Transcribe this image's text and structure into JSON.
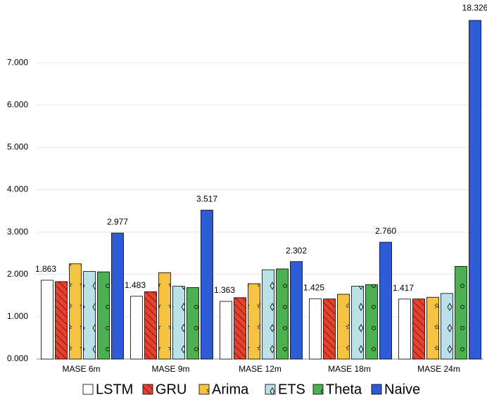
{
  "chart_data": {
    "type": "bar",
    "categories": [
      "MASE 6m",
      "MASE 9m",
      "MASE 12m",
      "MASE 18m",
      "MASE 24m"
    ],
    "series": [
      {
        "name": "LSTM",
        "color": "#ffffff",
        "values": [
          1.863,
          1.483,
          1.363,
          1.425,
          1.417
        ],
        "value_labels": [
          "1.863",
          "1.483",
          "1.363",
          "1.425",
          "1.417"
        ]
      },
      {
        "name": "GRU",
        "color": "#e8412b",
        "values": [
          1.83,
          1.59,
          1.45,
          1.42,
          1.42
        ]
      },
      {
        "name": "Arima",
        "color": "#f5c242",
        "values": [
          2.25,
          2.04,
          1.78,
          1.53,
          1.46
        ]
      },
      {
        "name": "ETS",
        "color": "#b9e1e7",
        "values": [
          2.07,
          1.72,
          2.11,
          1.72,
          1.55
        ]
      },
      {
        "name": "Theta",
        "color": "#4caf50",
        "values": [
          2.06,
          1.69,
          2.13,
          1.76,
          2.19
        ]
      },
      {
        "name": "Naive",
        "color": "#2e5bd6",
        "values": [
          2.977,
          3.517,
          2.302,
          2.76,
          18.326
        ],
        "value_labels": [
          "2.977",
          "3.517",
          "2.302",
          "2.760",
          "18.326"
        ]
      }
    ],
    "ylim": [
      0,
      8
    ],
    "yticks": [
      {
        "value": 0,
        "label": "0.000"
      },
      {
        "value": 1,
        "label": "1.000"
      },
      {
        "value": 2,
        "label": "2.000"
      },
      {
        "value": 3,
        "label": "3.000"
      },
      {
        "value": 4,
        "label": "4.000"
      },
      {
        "value": 5,
        "label": "5.000"
      },
      {
        "value": 6,
        "label": "6.000"
      },
      {
        "value": 7,
        "label": "7.000"
      }
    ],
    "grid": true
  }
}
